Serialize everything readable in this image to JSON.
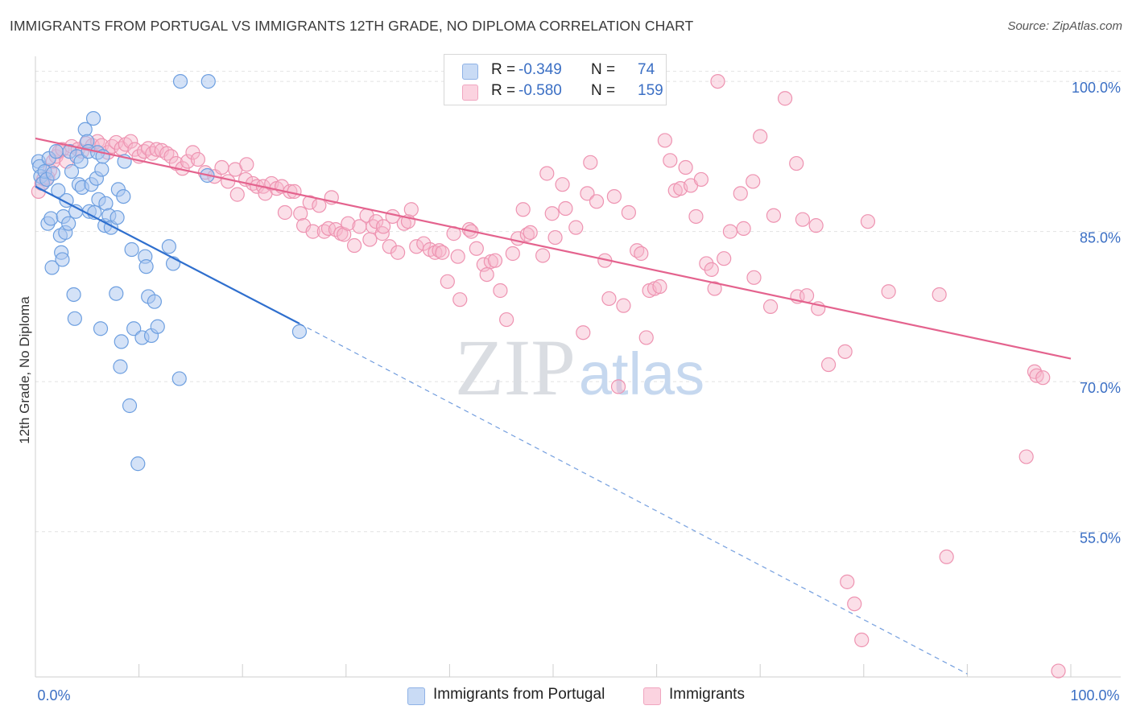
{
  "header": {
    "title": "IMMIGRANTS FROM PORTUGAL VS IMMIGRANTS 12TH GRADE, NO DIPLOMA CORRELATION CHART",
    "source": "Source: ZipAtlas.com"
  },
  "watermark": "ZIPatlas",
  "legend": {
    "r_label": "R =",
    "n_label": "N =",
    "rows": [
      {
        "r": "-0.349",
        "n": "74",
        "color": "#a9c6f0"
      },
      {
        "r": "-0.580",
        "n": "159",
        "color": "#f7b8cc"
      }
    ]
  },
  "colors": {
    "blue_fill": "#a9c6f0",
    "blue_stroke": "#6d9fe0",
    "blue_line": "#2f6fce",
    "pink_fill": "#f7b8cc",
    "pink_stroke": "#ee93b1",
    "pink_line": "#e4638e",
    "tick_label": "#3b6fc4",
    "grid": "#e2e2e2"
  },
  "chart_data": {
    "type": "scatter",
    "ylabel": "12th Grade, No Diploma",
    "xlim": [
      0,
      100
    ],
    "ylim": [
      40.5,
      102.5
    ],
    "y_ticks": [
      55,
      70,
      85,
      100
    ],
    "y_tick_labels": [
      "55.0%",
      "70.0%",
      "85.0%",
      "100.0%"
    ],
    "x_tick_labels": [
      "0.0%",
      "100.0%"
    ],
    "grid": true,
    "legend_placement": "bottom",
    "series": [
      {
        "name": "Immigrants from Portugal",
        "trend": {
          "x": [
            0,
            25.5
          ],
          "y": [
            89.5,
            75.8
          ],
          "dashed_to": [
            90,
            40.8
          ]
        },
        "points": [
          [
            0.3,
            92
          ],
          [
            0.4,
            91.5
          ],
          [
            0.5,
            90.5
          ],
          [
            0.7,
            89.8
          ],
          [
            0.9,
            91
          ],
          [
            1.1,
            90.2
          ],
          [
            1.3,
            92.3
          ],
          [
            1.2,
            85.8
          ],
          [
            1.5,
            86.3
          ],
          [
            1.6,
            81.4
          ],
          [
            1.7,
            90.8
          ],
          [
            2,
            93
          ],
          [
            2.2,
            89.1
          ],
          [
            2.4,
            84.6
          ],
          [
            2.5,
            82.9
          ],
          [
            2.6,
            82.2
          ],
          [
            2.7,
            86.5
          ],
          [
            2.9,
            84.9
          ],
          [
            3,
            88.1
          ],
          [
            3.2,
            85.8
          ],
          [
            3.3,
            93
          ],
          [
            3.5,
            91
          ],
          [
            3.7,
            78.7
          ],
          [
            3.8,
            76.3
          ],
          [
            3.9,
            87
          ],
          [
            4,
            92.5
          ],
          [
            4.2,
            89.7
          ],
          [
            4.4,
            92
          ],
          [
            4.5,
            89.4
          ],
          [
            4.8,
            95.2
          ],
          [
            5,
            94
          ],
          [
            5.1,
            93
          ],
          [
            5.2,
            87
          ],
          [
            5.4,
            89.7
          ],
          [
            5.6,
            96.3
          ],
          [
            5.7,
            86.9
          ],
          [
            5.9,
            90.3
          ],
          [
            6,
            92.9
          ],
          [
            6.1,
            88.2
          ],
          [
            6.3,
            75.3
          ],
          [
            6.4,
            91.2
          ],
          [
            6.5,
            92.5
          ],
          [
            6.7,
            85.6
          ],
          [
            6.8,
            87.8
          ],
          [
            7.1,
            86.6
          ],
          [
            7.3,
            85.4
          ],
          [
            7.8,
            78.8
          ],
          [
            7.9,
            86.4
          ],
          [
            8,
            89.2
          ],
          [
            8.2,
            71.5
          ],
          [
            8.3,
            74
          ],
          [
            8.5,
            88.5
          ],
          [
            8.6,
            92
          ],
          [
            9.1,
            67.6
          ],
          [
            9.3,
            83.2
          ],
          [
            9.5,
            75.3
          ],
          [
            9.9,
            61.8
          ],
          [
            10.3,
            74.4
          ],
          [
            10.6,
            82.5
          ],
          [
            10.7,
            81.5
          ],
          [
            10.9,
            78.5
          ],
          [
            11.2,
            74.6
          ],
          [
            11.5,
            78
          ],
          [
            11.8,
            75.5
          ],
          [
            12.9,
            83.5
          ],
          [
            13.3,
            81.8
          ],
          [
            13.9,
            70.3
          ],
          [
            14,
            100
          ],
          [
            16.6,
            90.6
          ],
          [
            16.7,
            100
          ],
          [
            25.5,
            75
          ]
        ]
      },
      {
        "name": "Immigrants",
        "trend": {
          "x": [
            0,
            100
          ],
          "y": [
            94.3,
            72.3
          ]
        },
        "points": [
          [
            0.3,
            89
          ],
          [
            0.6,
            89.8
          ],
          [
            0.8,
            90.3
          ],
          [
            1.2,
            90.4
          ],
          [
            1.4,
            91.1
          ],
          [
            1.7,
            92
          ],
          [
            2,
            92.5
          ],
          [
            2.3,
            93
          ],
          [
            2.6,
            93.2
          ],
          [
            3,
            92
          ],
          [
            3.5,
            93.5
          ],
          [
            4.1,
            93.2
          ],
          [
            4.5,
            93
          ],
          [
            4.9,
            93.8
          ],
          [
            5.5,
            93.6
          ],
          [
            6,
            94
          ],
          [
            6.4,
            93.6
          ],
          [
            7,
            92.9
          ],
          [
            7.4,
            93.5
          ],
          [
            7.8,
            93.9
          ],
          [
            8.3,
            93.3
          ],
          [
            8.7,
            93.7
          ],
          [
            9.2,
            94
          ],
          [
            9.6,
            93.2
          ],
          [
            10,
            92.5
          ],
          [
            10.5,
            93
          ],
          [
            10.9,
            93.3
          ],
          [
            11.3,
            92.8
          ],
          [
            11.7,
            93.2
          ],
          [
            12.2,
            93.1
          ],
          [
            12.7,
            92.8
          ],
          [
            13.1,
            92.5
          ],
          [
            13.6,
            91.8
          ],
          [
            14.2,
            91.3
          ],
          [
            14.7,
            92
          ],
          [
            15.2,
            92.9
          ],
          [
            15.7,
            92.2
          ],
          [
            16.4,
            90.9
          ],
          [
            17.3,
            90.5
          ],
          [
            18,
            91.4
          ],
          [
            18.6,
            90
          ],
          [
            19.3,
            91.2
          ],
          [
            19.5,
            88.7
          ],
          [
            20.3,
            90.2
          ],
          [
            20.4,
            91.7
          ],
          [
            21,
            89.8
          ],
          [
            21.4,
            89.5
          ],
          [
            22,
            89.5
          ],
          [
            22.2,
            88.8
          ],
          [
            22.8,
            89.8
          ],
          [
            23.3,
            89.3
          ],
          [
            23.8,
            89.5
          ],
          [
            24.1,
            86.9
          ],
          [
            24.6,
            89
          ],
          [
            25,
            89
          ],
          [
            25.6,
            86.8
          ],
          [
            25.9,
            85.6
          ],
          [
            26.5,
            87.9
          ],
          [
            26.8,
            85
          ],
          [
            27.4,
            87.6
          ],
          [
            27.9,
            85
          ],
          [
            28.3,
            85.3
          ],
          [
            28.6,
            88.4
          ],
          [
            29,
            85.2
          ],
          [
            29.5,
            84.8
          ],
          [
            29.8,
            84.7
          ],
          [
            30.2,
            85.8
          ],
          [
            30.8,
            83.6
          ],
          [
            31.3,
            85.5
          ],
          [
            32,
            86.6
          ],
          [
            32.3,
            84.2
          ],
          [
            32.6,
            85.5
          ],
          [
            32.9,
            86
          ],
          [
            33.5,
            84.8
          ],
          [
            33.6,
            85.5
          ],
          [
            34.2,
            83.5
          ],
          [
            34.5,
            86.5
          ],
          [
            35,
            82.9
          ],
          [
            35.6,
            85.8
          ],
          [
            36,
            86
          ],
          [
            36.3,
            87.2
          ],
          [
            36.8,
            83.5
          ],
          [
            37.5,
            83.8
          ],
          [
            38.1,
            83.2
          ],
          [
            38.6,
            82.9
          ],
          [
            39,
            83.1
          ],
          [
            39.3,
            82.9
          ],
          [
            39.8,
            80
          ],
          [
            40.4,
            84.8
          ],
          [
            40.8,
            82.5
          ],
          [
            41,
            78.2
          ],
          [
            41.9,
            85.2
          ],
          [
            42.1,
            85
          ],
          [
            42.6,
            83.3
          ],
          [
            43.3,
            81.7
          ],
          [
            43.6,
            80.7
          ],
          [
            44,
            82
          ],
          [
            44.4,
            82.1
          ],
          [
            44.9,
            79.1
          ],
          [
            45.5,
            76.2
          ],
          [
            46.1,
            82.8
          ],
          [
            46.6,
            84.3
          ],
          [
            47.1,
            87.2
          ],
          [
            47.5,
            84.7
          ],
          [
            47.8,
            84.9
          ],
          [
            49,
            82.6
          ],
          [
            49.4,
            90.8
          ],
          [
            49.9,
            86.8
          ],
          [
            50.2,
            84.4
          ],
          [
            50.9,
            89.7
          ],
          [
            51.2,
            87.3
          ],
          [
            52.2,
            85.4
          ],
          [
            52.9,
            74.9
          ],
          [
            53.3,
            88.8
          ],
          [
            53.6,
            91.9
          ],
          [
            54.2,
            88
          ],
          [
            55,
            82.1
          ],
          [
            55.4,
            78.3
          ],
          [
            55.9,
            88.5
          ],
          [
            56.3,
            69.5
          ],
          [
            56.8,
            77.6
          ],
          [
            57.3,
            86.9
          ],
          [
            58.1,
            83.1
          ],
          [
            58.5,
            82.8
          ],
          [
            59,
            74.4
          ],
          [
            59.3,
            79.1
          ],
          [
            59.8,
            79.3
          ],
          [
            60.3,
            79.5
          ],
          [
            60.8,
            94.1
          ],
          [
            61.3,
            92.1
          ],
          [
            61.8,
            89.1
          ],
          [
            62.3,
            89.3
          ],
          [
            62.8,
            91.4
          ],
          [
            63.3,
            89.6
          ],
          [
            63.8,
            86.5
          ],
          [
            64.3,
            90.2
          ],
          [
            64.8,
            81.8
          ],
          [
            65.3,
            81.2
          ],
          [
            65.6,
            79.3
          ],
          [
            65.9,
            100
          ],
          [
            66.5,
            82.3
          ],
          [
            67.1,
            85
          ],
          [
            68.1,
            88.8
          ],
          [
            68.4,
            85.3
          ],
          [
            69.3,
            90
          ],
          [
            69.4,
            80.4
          ],
          [
            70,
            94.5
          ],
          [
            71,
            77.5
          ],
          [
            71.3,
            86.6
          ],
          [
            72.4,
            98.3
          ],
          [
            73.5,
            91.8
          ],
          [
            73.6,
            78.5
          ],
          [
            74.1,
            86.2
          ],
          [
            74.5,
            78.6
          ],
          [
            75.4,
            85.6
          ],
          [
            75.6,
            77.3
          ],
          [
            76.6,
            71.7
          ],
          [
            78.2,
            73
          ],
          [
            78.4,
            50
          ],
          [
            79.1,
            47.8
          ],
          [
            79.8,
            44.2
          ],
          [
            80.4,
            86
          ],
          [
            82.4,
            79
          ],
          [
            87.3,
            78.7
          ],
          [
            88,
            52.5
          ],
          [
            95.7,
            62.5
          ],
          [
            96.5,
            71
          ],
          [
            96.7,
            70.6
          ],
          [
            97.3,
            70.4
          ],
          [
            98.8,
            41.1
          ]
        ]
      }
    ]
  }
}
